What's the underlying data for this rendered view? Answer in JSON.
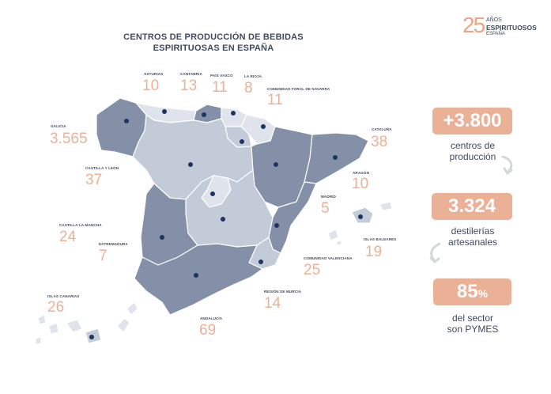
{
  "title": "CENTROS DE PRODUCCIÓN DE BEBIDAS ESPIRITUOSAS EN ESPAÑA",
  "logo": {
    "number": "25",
    "line1": "AÑOS",
    "line2": "ESPIRITUOSOS",
    "line3": "ESPAÑA"
  },
  "regions": [
    {
      "id": "asturias",
      "label": "ASTURIAS",
      "value": "10"
    },
    {
      "id": "cantabria",
      "label": "CANTABRIA",
      "value": "13"
    },
    {
      "id": "pais-vasco",
      "label": "PAÍS VASCO",
      "value": "11"
    },
    {
      "id": "la-rioja",
      "label": "LA RIOJA",
      "value": "8"
    },
    {
      "id": "navarra",
      "label": "COMUNIDAD FORAL DE NAVARRA",
      "value": "11"
    },
    {
      "id": "galicia",
      "label": "GALICIA",
      "value": "3.565"
    },
    {
      "id": "cataluna",
      "label": "CATALUÑA",
      "value": "38"
    },
    {
      "id": "castilla-leon",
      "label": "CASTILLA Y LEÓN",
      "value": "37"
    },
    {
      "id": "aragon",
      "label": "ARAGÓN",
      "value": "10"
    },
    {
      "id": "madrid",
      "label": "MADRID",
      "value": "5"
    },
    {
      "id": "castilla-la-mancha",
      "label": "CASTILLA LA-MANCHA",
      "value": "24"
    },
    {
      "id": "extremadura",
      "label": "EXTREMADURA",
      "value": "7"
    },
    {
      "id": "baleares",
      "label": "ISLAS BALEARES",
      "value": "19"
    },
    {
      "id": "valenciana",
      "label": "COMUNIDAD VALENCIANA",
      "value": "25"
    },
    {
      "id": "canarias",
      "label": "ISLAS CANARIAS",
      "value": "26"
    },
    {
      "id": "murcia",
      "label": "REGIÓN DE MURCIA",
      "value": "14"
    },
    {
      "id": "andalucia",
      "label": "ANDALUCÍA",
      "value": "69"
    }
  ],
  "stats": [
    {
      "value": "+3.800",
      "caption_line1": "centros de",
      "caption_line2": "producción"
    },
    {
      "value": "3.324",
      "caption_line1": "destilerías",
      "caption_line2": "artesanales"
    },
    {
      "value": "85",
      "value_suffix": "%",
      "caption_line1": "del sector",
      "caption_line2": "son PYMES"
    }
  ],
  "colors": {
    "accent": "#eab197",
    "dark_region": "#8390a8",
    "light_region": "#c3cad8",
    "lighter_region": "#dfe3eb",
    "dot": "#1e3560",
    "text": "#3e4a5e"
  }
}
